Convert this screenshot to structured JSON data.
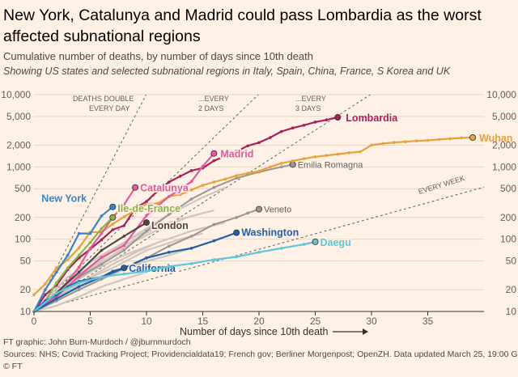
{
  "title": "New York, Catalunya and Madrid could pass Lombardia as the worst affected subnational regions",
  "subtitle": "Cumulative number of deaths, by number of days since 10th death",
  "subtitle2": "Showing US states and selected subnational regions in Italy, Spain, China, France, S Korea and UK",
  "footer": {
    "credit": "FT graphic: John Burn-Murdoch / @jburnmurdoch",
    "sources": "Sources: NHS; Covid Tracking Project; Providencialdata19; French gov; Berliner Morgenpost; OpenZH. Data updated March 25, 19:00 GMT",
    "copyright": "© FT"
  },
  "chart_data": {
    "type": "line",
    "xlabel": "Number of days since 10th death",
    "ylabel": "",
    "xlim": [
      0,
      40
    ],
    "ylim": [
      10,
      10000
    ],
    "yscale": "log",
    "x_ticks": [
      0,
      5,
      10,
      15,
      20,
      25,
      30,
      35
    ],
    "y_ticks": [
      10,
      20,
      50,
      100,
      200,
      500,
      1000,
      2000,
      5000,
      10000
    ],
    "y_tick_labels": [
      "10",
      "20",
      "50",
      "100",
      "200",
      "500",
      "1,000",
      "2,000",
      "5,000",
      "10,000"
    ],
    "grid": true,
    "reference_lines": [
      {
        "label": [
          "DEATHS DOUBLE",
          "EVERY DAY"
        ],
        "doubling_days": 1
      },
      {
        "label": [
          "...EVERY",
          "2 DAYS"
        ],
        "doubling_days": 2
      },
      {
        "label": [
          "...EVERY",
          "3 DAYS"
        ],
        "doubling_days": 3
      },
      {
        "label": [
          "EVERY WEEK"
        ],
        "doubling_days": 7
      }
    ],
    "series": [
      {
        "name": "Lombardia",
        "color": "#a6205c",
        "label_bold": true,
        "x": [
          0,
          1,
          2,
          3,
          4,
          5,
          6,
          7,
          8,
          9,
          10,
          11,
          12,
          13,
          14,
          15,
          16,
          17,
          18,
          19,
          20,
          21,
          22,
          23,
          24,
          25,
          26,
          27
        ],
        "y": [
          10,
          17,
          23,
          38,
          55,
          73,
          98,
          135,
          154,
          267,
          333,
          468,
          617,
          744,
          890,
          966,
          1218,
          1420,
          1640,
          1959,
          2168,
          2549,
          3095,
          3456,
          3776,
          4178,
          4474,
          4861
        ]
      },
      {
        "name": "Wuhan",
        "color": "#e8a23a",
        "label_bold": true,
        "x": [
          0,
          1,
          2,
          3,
          4,
          5,
          6,
          7,
          8,
          9,
          10,
          11,
          12,
          13,
          14,
          15,
          16,
          17,
          18,
          19,
          20,
          21,
          22,
          23,
          24,
          25,
          26,
          27,
          28,
          29,
          30,
          31,
          32,
          33,
          34,
          35,
          36,
          37,
          38,
          39
        ],
        "y": [
          17,
          24,
          40,
          52,
          76,
          125,
          125,
          162,
          204,
          249,
          306,
          313,
          392,
          414,
          481,
          557,
          618,
          680,
          758,
          818,
          876,
          1002,
          1123,
          1210,
          1300,
          1380,
          1440,
          1500,
          1571,
          1620,
          2000,
          2100,
          2180,
          2230,
          2290,
          2330,
          2400,
          2460,
          2520,
          2550
        ]
      },
      {
        "name": "Madrid",
        "color": "#e05a9c",
        "label_bold": true,
        "x": [
          0,
          2,
          4,
          6,
          8,
          10,
          12,
          14,
          15,
          16
        ],
        "y": [
          10,
          16,
          31,
          56,
          82,
          213,
          390,
          628,
          1022,
          1535
        ]
      },
      {
        "name": "Catalunya",
        "color": "#e05a9c",
        "label_bold": true,
        "x": [
          0,
          2,
          3,
          4,
          5,
          6,
          7,
          8,
          9
        ],
        "y": [
          10,
          18,
          26,
          41,
          75,
          120,
          200,
          300,
          520
        ]
      },
      {
        "name": "New York",
        "color": "#3a85c8",
        "label_bold": true,
        "x": [
          0,
          1,
          2,
          3,
          4,
          5,
          6,
          7
        ],
        "y": [
          10,
          20,
          35,
          60,
          120,
          120,
          210,
          280
        ]
      },
      {
        "name": "Ile-de-France",
        "color": "#8ab34a",
        "label_bold": true,
        "x": [
          0,
          1,
          2,
          3,
          4,
          5,
          6,
          7
        ],
        "y": [
          10,
          14,
          25,
          40,
          60,
          90,
          140,
          200
        ]
      },
      {
        "name": "London",
        "color": "#4d4845",
        "label_bold": true,
        "x": [
          0,
          2,
          4,
          6,
          8,
          10
        ],
        "y": [
          10,
          18,
          35,
          70,
          110,
          170
        ]
      },
      {
        "name": "Washington",
        "color": "#1f5fa8",
        "label_bold": true,
        "x": [
          0,
          2,
          4,
          6,
          8,
          10,
          12,
          14,
          16,
          18
        ],
        "y": [
          10,
          15,
          22,
          30,
          40,
          55,
          66,
          75,
          95,
          123
        ]
      },
      {
        "name": "California",
        "color": "#1f5fa8",
        "label_bold": true,
        "x": [
          0,
          1,
          2,
          3,
          4,
          5,
          6,
          7,
          8
        ],
        "y": [
          10,
          14,
          17,
          22,
          26,
          28,
          30,
          36,
          40
        ]
      },
      {
        "name": "Daegu",
        "color": "#5cc7d9",
        "label_bold": true,
        "x": [
          0,
          2,
          4,
          6,
          8,
          10,
          12,
          14,
          16,
          18,
          20,
          22,
          24,
          25
        ],
        "y": [
          10,
          18,
          25,
          30,
          33,
          36,
          42,
          46,
          52,
          57,
          66,
          75,
          85,
          92
        ]
      },
      {
        "name": "Emilia Romagna",
        "color": "#9a9692",
        "label_bold": false,
        "x": [
          0,
          2,
          4,
          6,
          8,
          10,
          12,
          14,
          16,
          18,
          20,
          22,
          23
        ],
        "y": [
          10,
          17,
          30,
          45,
          70,
          130,
          220,
          360,
          520,
          700,
          850,
          1000,
          1080
        ]
      },
      {
        "name": "Veneto",
        "color": "#9a9692",
        "label_bold": false,
        "x": [
          0,
          2,
          4,
          6,
          8,
          10,
          12,
          14,
          16,
          18,
          19,
          20
        ],
        "y": [
          10,
          14,
          20,
          28,
          40,
          55,
          80,
          110,
          160,
          200,
          230,
          260
        ]
      }
    ]
  }
}
